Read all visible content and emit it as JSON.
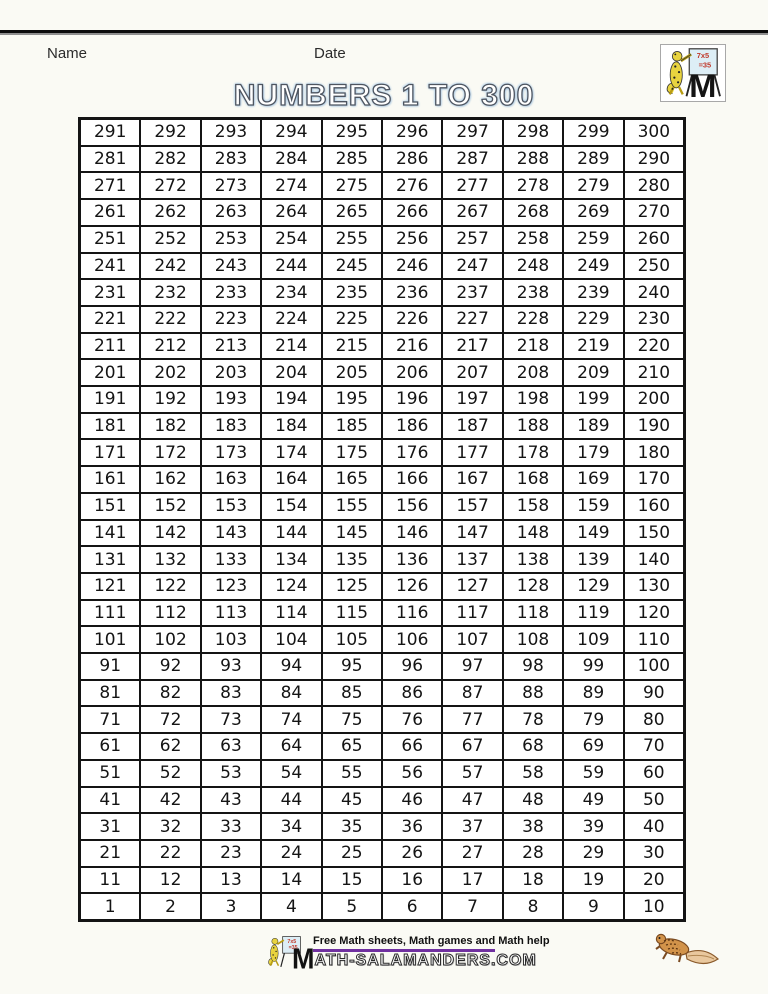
{
  "page": {
    "background": "#fafaf4"
  },
  "header": {
    "name_label": "Name",
    "date_label": "Date",
    "logo": {
      "board_line1": "7x5",
      "board_line2": "=35",
      "m_letter": "M"
    }
  },
  "title": "NUMBERS 1 TO 300",
  "grid": {
    "columns": 10,
    "rows": [
      [
        291,
        292,
        293,
        294,
        295,
        296,
        297,
        298,
        299,
        300
      ],
      [
        281,
        282,
        283,
        284,
        285,
        286,
        287,
        288,
        289,
        290
      ],
      [
        271,
        272,
        273,
        274,
        275,
        276,
        277,
        278,
        279,
        280
      ],
      [
        261,
        262,
        263,
        264,
        265,
        266,
        267,
        268,
        269,
        270
      ],
      [
        251,
        252,
        253,
        254,
        255,
        256,
        257,
        258,
        259,
        260
      ],
      [
        241,
        242,
        243,
        244,
        245,
        246,
        247,
        248,
        249,
        250
      ],
      [
        231,
        232,
        233,
        234,
        235,
        236,
        237,
        238,
        239,
        240
      ],
      [
        221,
        222,
        223,
        224,
        225,
        226,
        227,
        228,
        229,
        230
      ],
      [
        211,
        212,
        213,
        214,
        215,
        216,
        217,
        218,
        219,
        220
      ],
      [
        201,
        202,
        203,
        204,
        205,
        206,
        207,
        208,
        209,
        210
      ],
      [
        191,
        192,
        193,
        194,
        195,
        196,
        197,
        198,
        199,
        200
      ],
      [
        181,
        182,
        183,
        184,
        185,
        186,
        187,
        188,
        189,
        190
      ],
      [
        171,
        172,
        173,
        174,
        175,
        176,
        177,
        178,
        179,
        180
      ],
      [
        161,
        162,
        163,
        164,
        165,
        166,
        167,
        168,
        169,
        170
      ],
      [
        151,
        152,
        153,
        154,
        155,
        156,
        157,
        158,
        159,
        160
      ],
      [
        141,
        142,
        143,
        144,
        145,
        146,
        147,
        148,
        149,
        150
      ],
      [
        131,
        132,
        133,
        134,
        135,
        136,
        137,
        138,
        139,
        140
      ],
      [
        121,
        122,
        123,
        124,
        125,
        126,
        127,
        128,
        129,
        130
      ],
      [
        111,
        112,
        113,
        114,
        115,
        116,
        117,
        118,
        119,
        120
      ],
      [
        101,
        102,
        103,
        104,
        105,
        106,
        107,
        108,
        109,
        110
      ],
      [
        91,
        92,
        93,
        94,
        95,
        96,
        97,
        98,
        99,
        100
      ],
      [
        81,
        82,
        83,
        84,
        85,
        86,
        87,
        88,
        89,
        90
      ],
      [
        71,
        72,
        73,
        74,
        75,
        76,
        77,
        78,
        79,
        80
      ],
      [
        61,
        62,
        63,
        64,
        65,
        66,
        67,
        68,
        69,
        70
      ],
      [
        51,
        52,
        53,
        54,
        55,
        56,
        57,
        58,
        59,
        60
      ],
      [
        41,
        42,
        43,
        44,
        45,
        46,
        47,
        48,
        49,
        50
      ],
      [
        31,
        32,
        33,
        34,
        35,
        36,
        37,
        38,
        39,
        40
      ],
      [
        21,
        22,
        23,
        24,
        25,
        26,
        27,
        28,
        29,
        30
      ],
      [
        11,
        12,
        13,
        14,
        15,
        16,
        17,
        18,
        19,
        20
      ],
      [
        1,
        2,
        3,
        4,
        5,
        6,
        7,
        8,
        9,
        10
      ]
    ]
  },
  "footer": {
    "tagline": "Free Math sheets, Math games and Math help",
    "site_m": "M",
    "site_rest": "ATH-SALAMANDERS.COM",
    "accent_purple": "#7030a0",
    "logo": {
      "board_line1": "7x5",
      "board_line2": "=35",
      "m_letter": "M"
    }
  }
}
